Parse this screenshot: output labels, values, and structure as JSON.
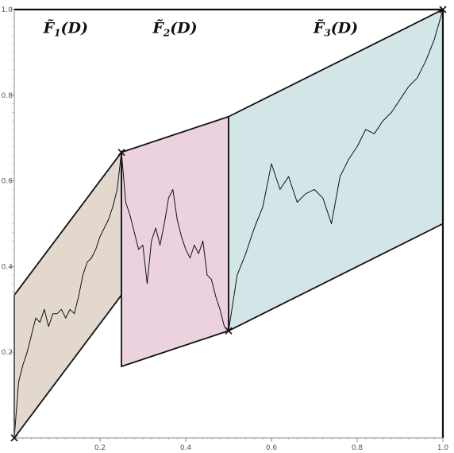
{
  "chart_data": {
    "type": "line",
    "title": "",
    "xlabel": "",
    "ylabel": "",
    "xlim": [
      0,
      1
    ],
    "ylim": [
      0,
      1
    ],
    "x_ticks": [
      "0.2",
      "0.4",
      "0.6",
      "0.8",
      "1.0"
    ],
    "x_tick_values": [
      0.2,
      0.4,
      0.6,
      0.8,
      1.0
    ],
    "y_ticks": [
      "0.2",
      "0.4",
      "0.6",
      "0.8",
      "1.0"
    ],
    "y_tick_values": [
      0.2,
      0.4,
      0.6,
      0.8,
      1.0
    ],
    "grid": false,
    "regions": [
      {
        "label_main": "F",
        "label_sub": "1",
        "label_arg": "(D)",
        "label_at": [
          0.12,
          0.945
        ],
        "color": "#e2d8ce",
        "polygon": [
          [
            0,
            0
          ],
          [
            0,
            0.3333
          ],
          [
            0.25,
            0.6667
          ],
          [
            0.25,
            0.3333
          ]
        ]
      },
      {
        "label_main": "F",
        "label_sub": "2",
        "label_arg": "(D)",
        "label_at": [
          0.375,
          0.945
        ],
        "color": "#ecd2de",
        "polygon": [
          [
            0.25,
            0.6667
          ],
          [
            0.5,
            0.75
          ],
          [
            0.5,
            0.25
          ],
          [
            0.25,
            0.1667
          ]
        ]
      },
      {
        "label_main": "F",
        "label_sub": "3",
        "label_arg": "(D)",
        "label_at": [
          0.75,
          0.945
        ],
        "color": "#d2e6e8",
        "polygon": [
          [
            0.5,
            0.75
          ],
          [
            1.0,
            1.0
          ],
          [
            1.0,
            0.5
          ],
          [
            0.5,
            0.25
          ]
        ]
      }
    ],
    "marked_points": [
      [
        0,
        0
      ],
      [
        0.25,
        0.6667
      ],
      [
        0.5,
        0.25
      ],
      [
        1.0,
        1.0
      ]
    ],
    "series": [
      {
        "color": "#111111",
        "x": [
          0,
          0.01,
          0.02,
          0.03,
          0.04,
          0.05,
          0.06,
          0.07,
          0.08,
          0.09,
          0.1,
          0.11,
          0.12,
          0.13,
          0.14,
          0.15,
          0.16,
          0.17,
          0.18,
          0.19,
          0.2,
          0.21,
          0.22,
          0.23,
          0.24,
          0.25,
          0.26,
          0.27,
          0.28,
          0.29,
          0.3,
          0.31,
          0.32,
          0.33,
          0.34,
          0.35,
          0.36,
          0.37,
          0.38,
          0.39,
          0.4,
          0.41,
          0.42,
          0.43,
          0.44,
          0.45,
          0.46,
          0.47,
          0.48,
          0.49,
          0.5,
          0.52,
          0.54,
          0.56,
          0.58,
          0.6,
          0.62,
          0.64,
          0.66,
          0.68,
          0.7,
          0.72,
          0.74,
          0.76,
          0.78,
          0.8,
          0.82,
          0.84,
          0.86,
          0.88,
          0.9,
          0.92,
          0.94,
          0.96,
          0.98,
          1.0
        ],
        "y": [
          0,
          0.13,
          0.17,
          0.2,
          0.24,
          0.28,
          0.27,
          0.3,
          0.26,
          0.29,
          0.29,
          0.3,
          0.28,
          0.3,
          0.29,
          0.33,
          0.38,
          0.41,
          0.42,
          0.44,
          0.47,
          0.49,
          0.51,
          0.54,
          0.58,
          0.6667,
          0.55,
          0.52,
          0.48,
          0.44,
          0.45,
          0.36,
          0.46,
          0.49,
          0.45,
          0.5,
          0.56,
          0.58,
          0.51,
          0.47,
          0.44,
          0.42,
          0.45,
          0.43,
          0.46,
          0.38,
          0.37,
          0.33,
          0.3,
          0.26,
          0.25,
          0.38,
          0.43,
          0.49,
          0.54,
          0.64,
          0.58,
          0.61,
          0.55,
          0.57,
          0.58,
          0.56,
          0.5,
          0.61,
          0.65,
          0.68,
          0.72,
          0.71,
          0.74,
          0.76,
          0.79,
          0.82,
          0.84,
          0.88,
          0.93,
          1.0
        ]
      }
    ]
  }
}
